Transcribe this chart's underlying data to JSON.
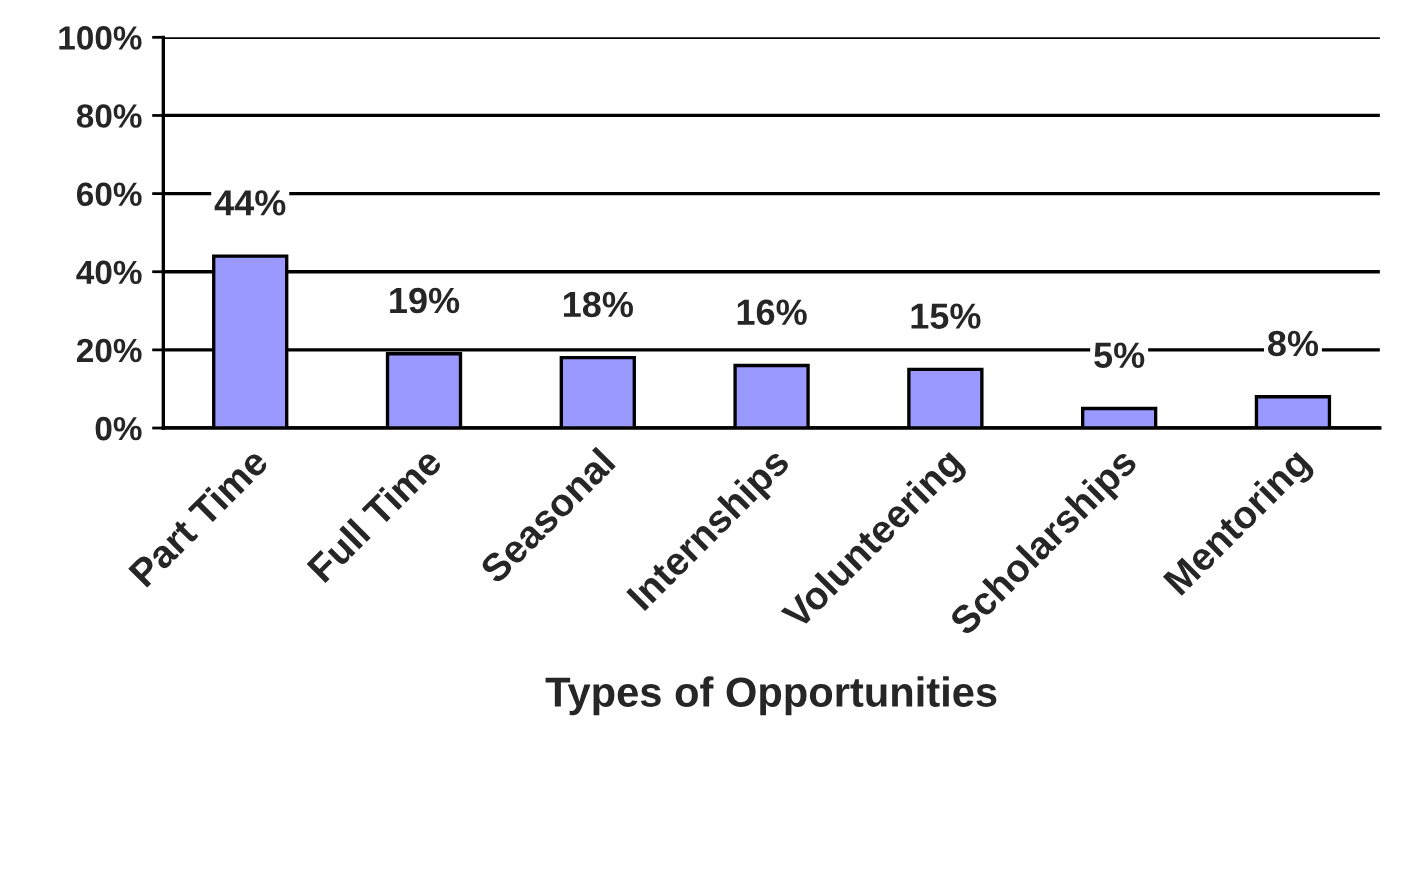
{
  "chart_data": {
    "type": "bar",
    "xlabel": "Types of Opportunities",
    "categories": [
      "Part Time",
      "Full Time",
      "Seasonal",
      "Internships",
      "Volunteering",
      "Scholarships",
      "Mentoring"
    ],
    "values": [
      44,
      19,
      18,
      16,
      15,
      5,
      8
    ],
    "value_labels": [
      "44%",
      "19%",
      "18%",
      "16%",
      "15%",
      "5%",
      "8%"
    ],
    "color": "#9999ff",
    "ylim": [
      0,
      100
    ],
    "yticks": [
      {
        "value": 0,
        "label": "0%"
      },
      {
        "value": 20,
        "label": "20%"
      },
      {
        "value": 40,
        "label": "40%"
      },
      {
        "value": 60,
        "label": "60%"
      },
      {
        "value": 80,
        "label": "80%"
      },
      {
        "value": 100,
        "label": "100%"
      }
    ],
    "grid": "y",
    "legend": false
  }
}
